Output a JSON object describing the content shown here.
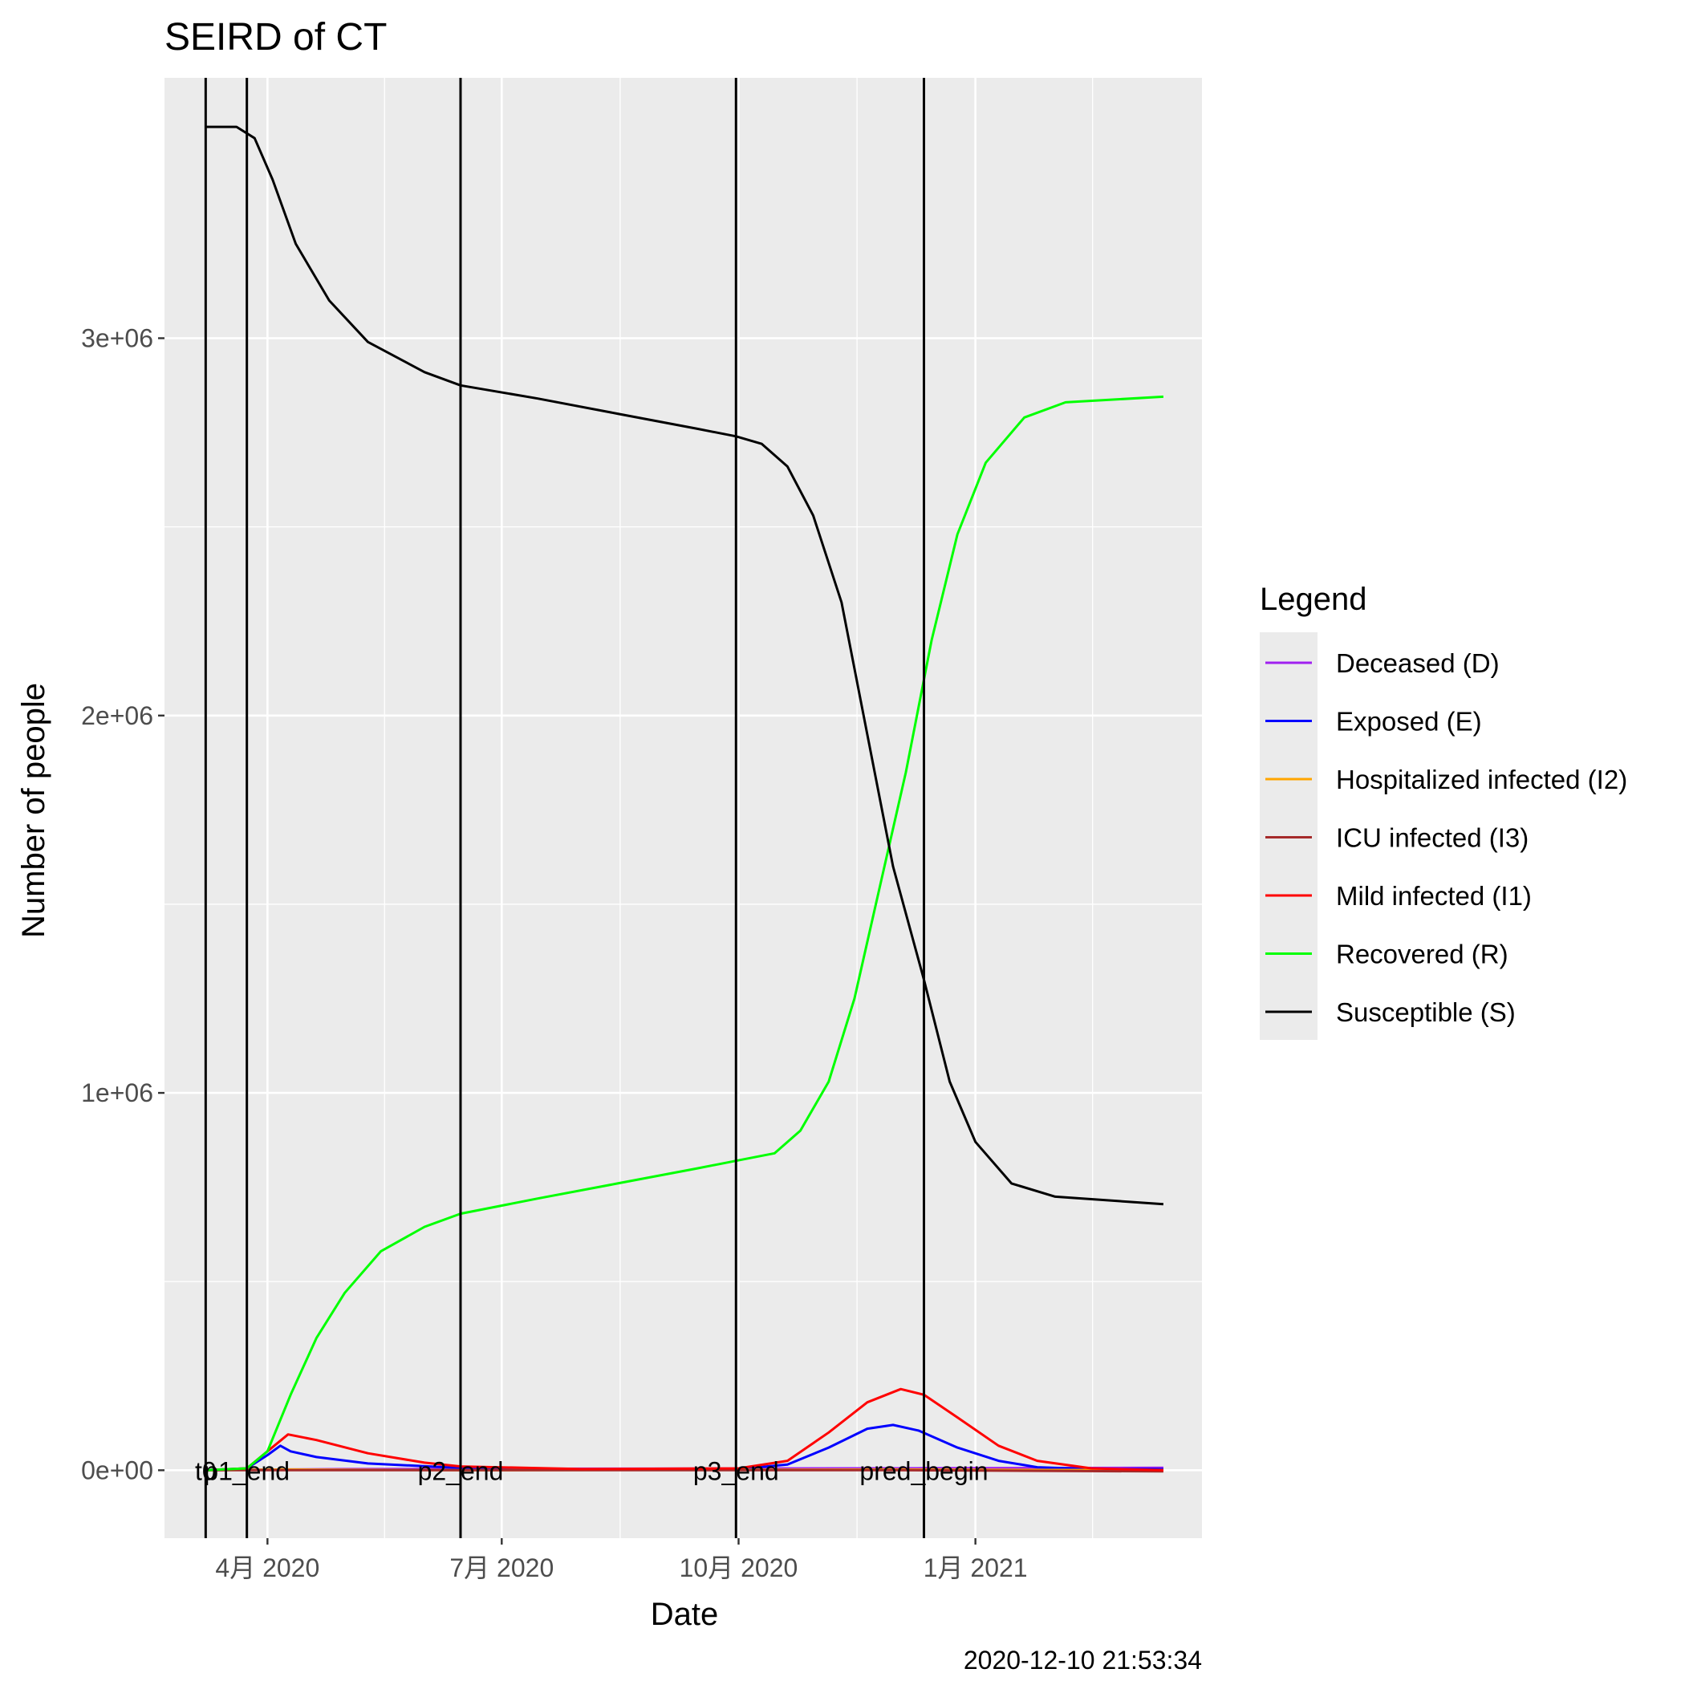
{
  "chart_data": {
    "type": "line",
    "title": "SEIRD of CT",
    "xlabel": "Date",
    "ylabel": "Number of people",
    "caption": "2020-12-10 21:53:34",
    "xlim": [
      "2020-02-21",
      "2021-03-30"
    ],
    "ylim": [
      -180000,
      3690000
    ],
    "x_ticks": [
      {
        "date": "2020-04-01",
        "label": "4月 2020"
      },
      {
        "date": "2020-07-01",
        "label": "7月 2020"
      },
      {
        "date": "2020-10-01",
        "label": "10月 2020"
      },
      {
        "date": "2021-01-01",
        "label": "1月 2021"
      }
    ],
    "y_ticks": [
      {
        "value": 0,
        "label": "0e+00"
      },
      {
        "value": 1000000,
        "label": "1e+06"
      },
      {
        "value": 2000000,
        "label": "2e+06"
      },
      {
        "value": 3000000,
        "label": "3e+06"
      }
    ],
    "grid": true,
    "legend": {
      "title": "Legend",
      "position": "right"
    },
    "vertical_lines": [
      {
        "date": "2020-03-08",
        "label": "t0"
      },
      {
        "date": "2020-03-24",
        "label": "p1_end"
      },
      {
        "date": "2020-06-15",
        "label": "p2_end"
      },
      {
        "date": "2020-09-30",
        "label": "p3_end"
      },
      {
        "date": "2020-12-12",
        "label": "pred_begin"
      }
    ],
    "series": [
      {
        "name": "Deceased (D)",
        "color": "#a020f0",
        "points": [
          [
            "2020-03-08",
            0
          ],
          [
            "2020-05-01",
            3000
          ],
          [
            "2020-07-01",
            4000
          ],
          [
            "2020-10-01",
            4500
          ],
          [
            "2020-12-12",
            5500
          ],
          [
            "2021-03-15",
            6500
          ]
        ]
      },
      {
        "name": "Exposed (E)",
        "color": "#0000ff",
        "points": [
          [
            "2020-03-08",
            0
          ],
          [
            "2020-03-24",
            5000
          ],
          [
            "2020-04-01",
            40000
          ],
          [
            "2020-04-06",
            65000
          ],
          [
            "2020-04-10",
            50000
          ],
          [
            "2020-04-20",
            35000
          ],
          [
            "2020-05-10",
            18000
          ],
          [
            "2020-06-15",
            6000
          ],
          [
            "2020-08-01",
            2000
          ],
          [
            "2020-10-01",
            3000
          ],
          [
            "2020-10-20",
            15000
          ],
          [
            "2020-11-05",
            60000
          ],
          [
            "2020-11-20",
            110000
          ],
          [
            "2020-11-30",
            120000
          ],
          [
            "2020-12-10",
            105000
          ],
          [
            "2020-12-25",
            60000
          ],
          [
            "2021-01-10",
            25000
          ],
          [
            "2021-01-25",
            8000
          ],
          [
            "2021-02-15",
            3000
          ],
          [
            "2021-03-15",
            3000
          ]
        ]
      },
      {
        "name": "Hospitalized infected (I2)",
        "color": "#ffa500",
        "points": [
          [
            "2020-03-08",
            0
          ],
          [
            "2020-04-10",
            2000
          ],
          [
            "2020-06-15",
            0
          ],
          [
            "2020-12-01",
            2000
          ],
          [
            "2021-03-15",
            0
          ]
        ]
      },
      {
        "name": "ICU infected (I3)",
        "color": "#a52a2a",
        "points": [
          [
            "2020-03-08",
            0
          ],
          [
            "2020-04-10",
            0
          ],
          [
            "2020-06-15",
            0
          ],
          [
            "2020-12-01",
            0
          ],
          [
            "2021-03-15",
            -3000
          ]
        ]
      },
      {
        "name": "Mild infected (I1)",
        "color": "#ff0000",
        "points": [
          [
            "2020-03-08",
            0
          ],
          [
            "2020-03-24",
            5000
          ],
          [
            "2020-04-01",
            50000
          ],
          [
            "2020-04-09",
            95000
          ],
          [
            "2020-04-20",
            80000
          ],
          [
            "2020-05-10",
            45000
          ],
          [
            "2020-06-01",
            20000
          ],
          [
            "2020-06-15",
            10000
          ],
          [
            "2020-08-01",
            3000
          ],
          [
            "2020-10-01",
            5000
          ],
          [
            "2020-10-20",
            25000
          ],
          [
            "2020-11-05",
            100000
          ],
          [
            "2020-11-20",
            180000
          ],
          [
            "2020-12-03",
            215000
          ],
          [
            "2020-12-12",
            200000
          ],
          [
            "2020-12-25",
            140000
          ],
          [
            "2021-01-10",
            65000
          ],
          [
            "2021-01-25",
            25000
          ],
          [
            "2021-02-15",
            5000
          ],
          [
            "2021-03-15",
            0
          ]
        ]
      },
      {
        "name": "Recovered (R)",
        "color": "#00ff00",
        "points": [
          [
            "2020-03-08",
            0
          ],
          [
            "2020-03-24",
            5000
          ],
          [
            "2020-04-01",
            50000
          ],
          [
            "2020-04-10",
            200000
          ],
          [
            "2020-04-20",
            350000
          ],
          [
            "2020-05-01",
            470000
          ],
          [
            "2020-05-15",
            580000
          ],
          [
            "2020-06-01",
            645000
          ],
          [
            "2020-06-15",
            680000
          ],
          [
            "2020-07-15",
            720000
          ],
          [
            "2020-08-15",
            760000
          ],
          [
            "2020-09-15",
            800000
          ],
          [
            "2020-09-30",
            820000
          ],
          [
            "2020-10-15",
            840000
          ],
          [
            "2020-10-25",
            900000
          ],
          [
            "2020-11-05",
            1030000
          ],
          [
            "2020-11-15",
            1250000
          ],
          [
            "2020-11-25",
            1550000
          ],
          [
            "2020-12-05",
            1850000
          ],
          [
            "2020-12-15",
            2200000
          ],
          [
            "2020-12-25",
            2480000
          ],
          [
            "2021-01-05",
            2670000
          ],
          [
            "2021-01-20",
            2790000
          ],
          [
            "2021-02-05",
            2830000
          ],
          [
            "2021-03-15",
            2845000
          ]
        ]
      },
      {
        "name": "Susceptible (S)",
        "color": "#000000",
        "points": [
          [
            "2020-03-08",
            3560000
          ],
          [
            "2020-03-20",
            3560000
          ],
          [
            "2020-03-27",
            3530000
          ],
          [
            "2020-04-03",
            3420000
          ],
          [
            "2020-04-12",
            3250000
          ],
          [
            "2020-04-25",
            3100000
          ],
          [
            "2020-05-10",
            2990000
          ],
          [
            "2020-06-01",
            2910000
          ],
          [
            "2020-06-15",
            2875000
          ],
          [
            "2020-07-15",
            2840000
          ],
          [
            "2020-08-15",
            2800000
          ],
          [
            "2020-09-15",
            2760000
          ],
          [
            "2020-09-30",
            2740000
          ],
          [
            "2020-10-10",
            2720000
          ],
          [
            "2020-10-20",
            2660000
          ],
          [
            "2020-10-30",
            2530000
          ],
          [
            "2020-11-10",
            2300000
          ],
          [
            "2020-11-20",
            1950000
          ],
          [
            "2020-11-30",
            1600000
          ],
          [
            "2020-12-12",
            1300000
          ],
          [
            "2020-12-22",
            1030000
          ],
          [
            "2021-01-01",
            870000
          ],
          [
            "2021-01-15",
            760000
          ],
          [
            "2021-02-01",
            725000
          ],
          [
            "2021-03-15",
            705000
          ]
        ]
      }
    ]
  }
}
